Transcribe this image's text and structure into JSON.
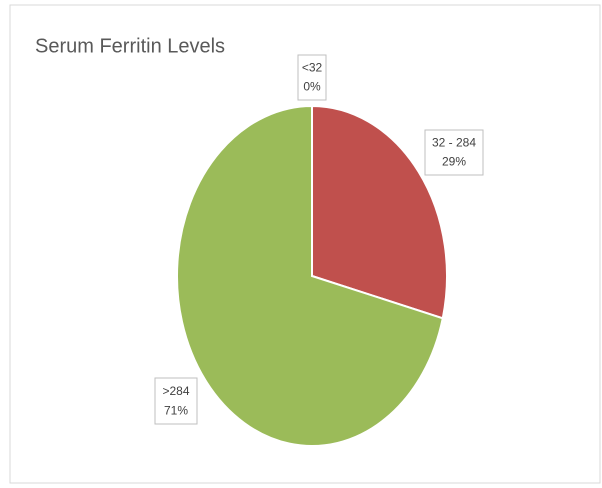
{
  "chart_data": {
    "type": "pie",
    "title": "Serum Ferritin Levels",
    "categories": [
      "<32",
      "32 - 284",
      ">284"
    ],
    "values": [
      0,
      29,
      71
    ],
    "value_labels": [
      "0%",
      "29%",
      "71%"
    ],
    "colors": [
      "#4f81bd",
      "#c0504d",
      "#9bbb59"
    ]
  }
}
